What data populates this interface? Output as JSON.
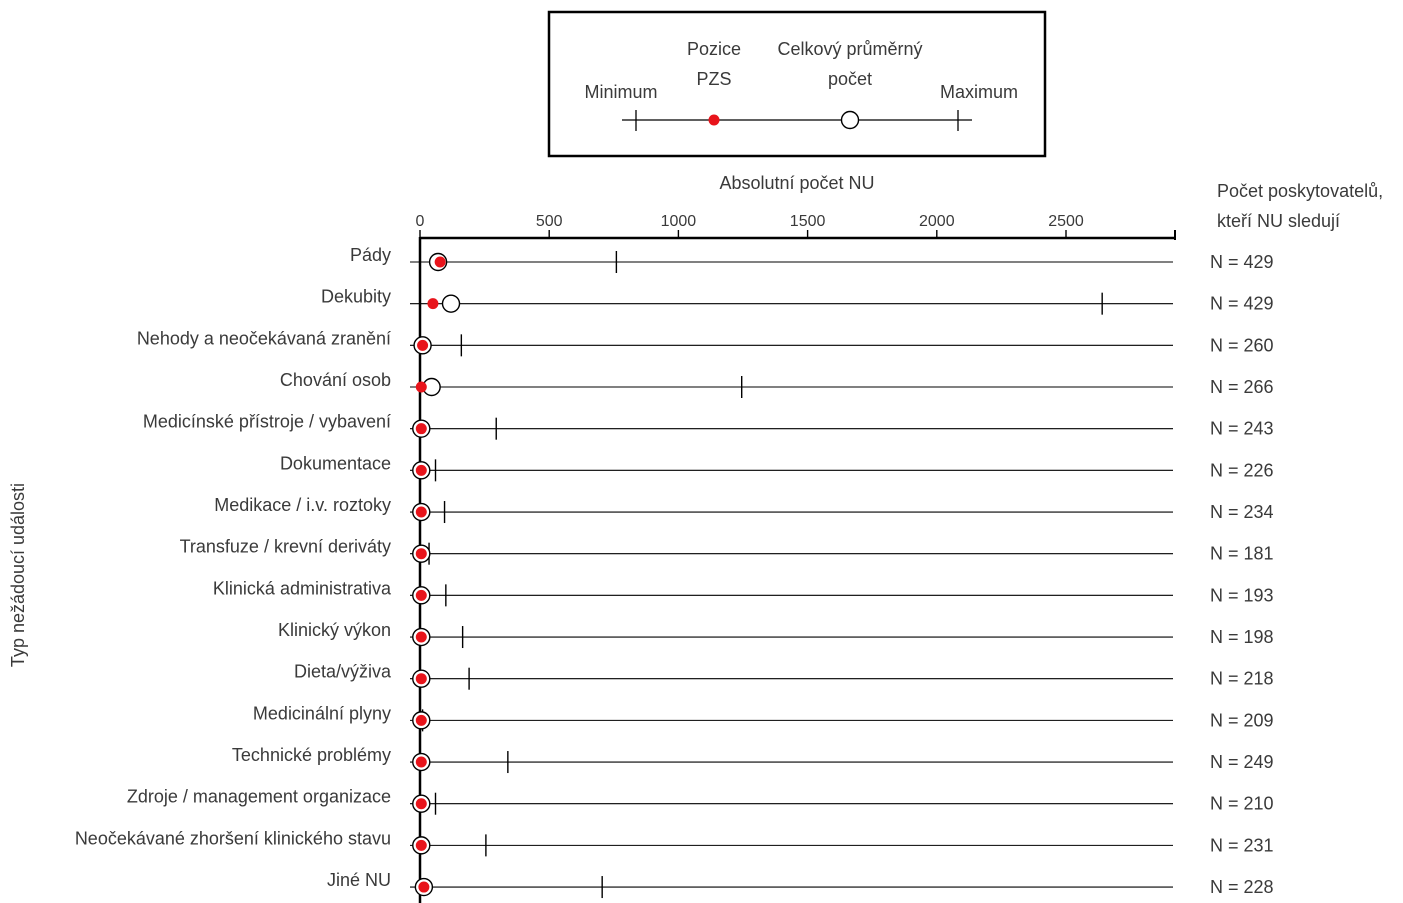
{
  "chart_data": {
    "type": "scatter",
    "ylabel": "Typ nežádoucí události",
    "xlabel": "Absolutní počet NU",
    "right_header": [
      "Počet poskytovatelů,",
      "kteří NU sledují"
    ],
    "xticks": [
      0,
      500,
      1000,
      1500,
      2000,
      2500
    ],
    "xlim": [
      0,
      2900
    ],
    "legend": {
      "placement": "top-center",
      "minimum": "Minimum",
      "position": [
        "Pozice",
        "PZS"
      ],
      "average": [
        "Celkový průměrný",
        "počet"
      ],
      "maximum": "Maximum"
    },
    "categories": [
      {
        "label": "Pády",
        "n": "N = 429",
        "min": 0,
        "max": 760,
        "avg": 70,
        "pzs": 78
      },
      {
        "label": "Dekubity",
        "n": "N = 429",
        "min": 0,
        "max": 2640,
        "avg": 120,
        "pzs": 50
      },
      {
        "label": "Nehody a neočekávaná zranění",
        "n": "N = 260",
        "min": 0,
        "max": 160,
        "avg": 10,
        "pzs": 10
      },
      {
        "label": "Chování osob",
        "n": "N = 266",
        "min": 0,
        "max": 1245,
        "avg": 45,
        "pzs": 5
      },
      {
        "label": "Medicínské přístroje / vybavení",
        "n": "N = 243",
        "min": 0,
        "max": 295,
        "avg": 5,
        "pzs": 5
      },
      {
        "label": "Dokumentace",
        "n": "N = 226",
        "min": 0,
        "max": 60,
        "avg": 5,
        "pzs": 5
      },
      {
        "label": "Medikace / i.v. roztoky",
        "n": "N = 234",
        "min": 0,
        "max": 95,
        "avg": 5,
        "pzs": 5
      },
      {
        "label": "Transfuze / krevní deriváty",
        "n": "N = 181",
        "min": 0,
        "max": 35,
        "avg": 5,
        "pzs": 5
      },
      {
        "label": "Klinická administrativa",
        "n": "N = 193",
        "min": 0,
        "max": 100,
        "avg": 5,
        "pzs": 5
      },
      {
        "label": "Klinický výkon",
        "n": "N = 198",
        "min": 0,
        "max": 165,
        "avg": 5,
        "pzs": 5
      },
      {
        "label": "Dieta/výživa",
        "n": "N = 218",
        "min": 0,
        "max": 190,
        "avg": 5,
        "pzs": 5
      },
      {
        "label": "Medicinální plyny",
        "n": "N = 209",
        "min": 0,
        "max": 10,
        "avg": 5,
        "pzs": 5
      },
      {
        "label": "Technické problémy",
        "n": "N = 249",
        "min": 0,
        "max": 340,
        "avg": 5,
        "pzs": 5
      },
      {
        "label": "Zdroje / management organizace",
        "n": "N = 210",
        "min": 0,
        "max": 60,
        "avg": 5,
        "pzs": 5
      },
      {
        "label": "Neočekávané zhoršení klinického stavu",
        "n": "N = 231",
        "min": 0,
        "max": 255,
        "avg": 5,
        "pzs": 5
      },
      {
        "label": "Jiné NU",
        "n": "N = 228",
        "min": 0,
        "max": 705,
        "avg": 15,
        "pzs": 15
      }
    ],
    "colors": {
      "pzs": "#e8141b",
      "line": "#000000",
      "text": "#3a3a3a"
    }
  }
}
